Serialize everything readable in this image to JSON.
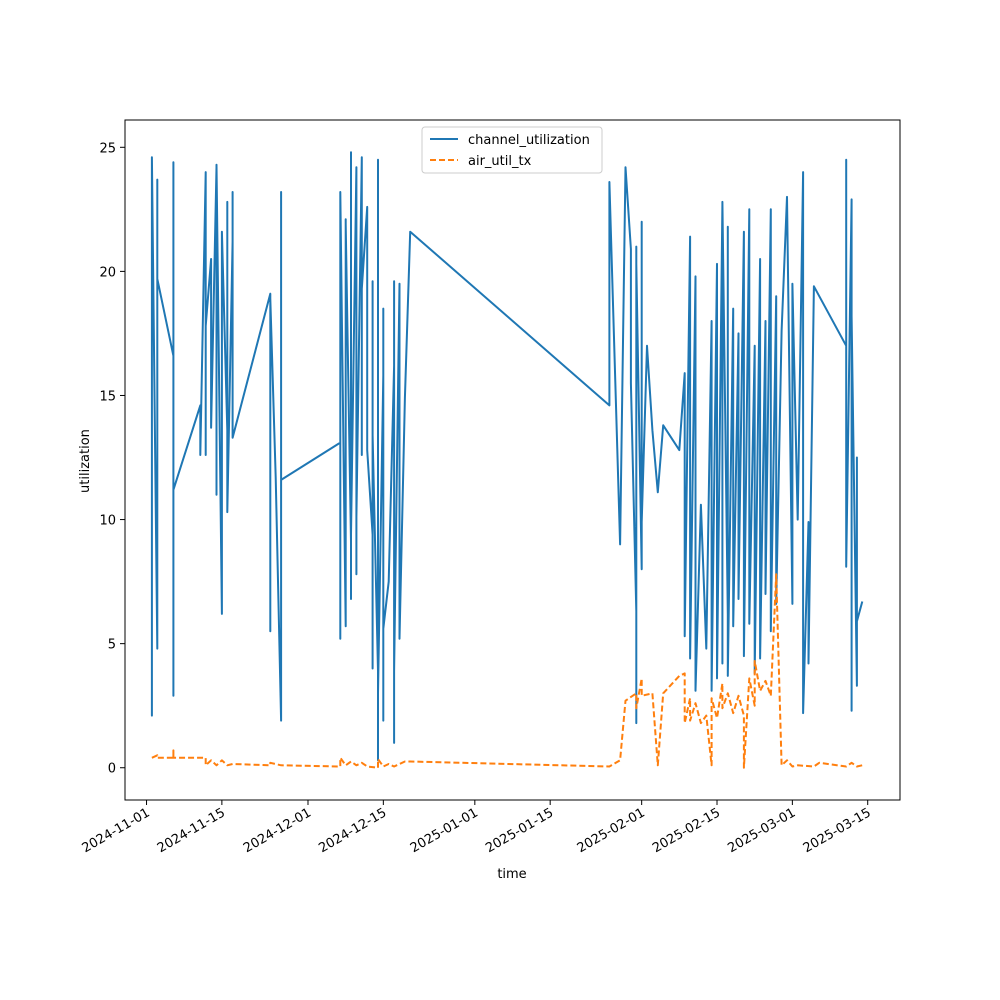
{
  "chart_data": {
    "type": "line",
    "title": "",
    "xlabel": "time",
    "ylabel": "utilization",
    "x_axis": {
      "type": "date",
      "range": [
        "2024-10-28",
        "2025-03-21"
      ],
      "ticks": [
        "2024-11-01",
        "2024-11-15",
        "2024-12-01",
        "2024-12-15",
        "2025-01-01",
        "2025-01-15",
        "2025-02-01",
        "2025-02-15",
        "2025-03-01",
        "2025-03-15"
      ]
    },
    "y_axis": {
      "range": [
        -1.3,
        26.1
      ],
      "ticks": [
        0,
        5,
        10,
        15,
        20,
        25
      ]
    },
    "grid": false,
    "legend_position": "top-center",
    "series": [
      {
        "name": "channel_utilization",
        "color": "#1f77b4",
        "style": "solid",
        "points": [
          [
            "2024-11-02",
            21.7
          ],
          [
            "2024-11-02",
            5.2
          ],
          [
            "2024-11-02",
            21.8
          ],
          [
            "2024-11-02",
            2.1
          ],
          [
            "2024-11-02",
            24.6
          ],
          [
            "2024-11-03",
            4.8
          ],
          [
            "2024-11-03",
            23.7
          ],
          [
            "2024-11-03",
            13.2
          ],
          [
            "2024-11-03",
            23.1
          ],
          [
            "2024-11-03",
            19.7
          ],
          [
            "2024-11-06",
            16.6
          ],
          [
            "2024-11-06",
            2.9
          ],
          [
            "2024-11-06",
            24.4
          ],
          [
            "2024-11-06",
            11.2
          ],
          [
            "2024-11-11",
            14.6
          ],
          [
            "2024-11-11",
            12.6
          ],
          [
            "2024-11-12",
            24.0
          ],
          [
            "2024-11-12",
            12.6
          ],
          [
            "2024-11-12",
            17.8
          ],
          [
            "2024-11-13",
            20.5
          ],
          [
            "2024-11-13",
            13.7
          ],
          [
            "2024-11-14",
            24.2
          ],
          [
            "2024-11-14",
            11.0
          ],
          [
            "2024-11-14",
            24.3
          ],
          [
            "2024-11-15",
            6.2
          ],
          [
            "2024-11-15",
            19.4
          ],
          [
            "2024-11-15",
            8.2
          ],
          [
            "2024-11-15",
            21.6
          ],
          [
            "2024-11-16",
            13.6
          ],
          [
            "2024-11-16",
            22.8
          ],
          [
            "2024-11-16",
            10.3
          ],
          [
            "2024-11-17",
            21.2
          ],
          [
            "2024-11-17",
            13.3
          ],
          [
            "2024-11-17",
            23.2
          ],
          [
            "2024-11-17",
            13.3
          ],
          [
            "2024-11-24",
            19.1
          ],
          [
            "2024-11-24",
            5.5
          ],
          [
            "2024-11-24",
            18.9
          ],
          [
            "2024-11-25",
            11.7
          ],
          [
            "2024-11-26",
            1.9
          ],
          [
            "2024-11-26",
            23.2
          ],
          [
            "2024-11-26",
            11.1
          ],
          [
            "2024-11-26",
            13.2
          ],
          [
            "2024-11-26",
            11.6
          ],
          [
            "2024-12-07",
            13.1
          ],
          [
            "2024-12-07",
            19.7
          ],
          [
            "2024-12-07",
            5.2
          ],
          [
            "2024-12-07",
            23.2
          ],
          [
            "2024-12-08",
            5.7
          ],
          [
            "2024-12-08",
            22.1
          ],
          [
            "2024-12-08",
            12.4
          ],
          [
            "2024-12-08",
            21.9
          ],
          [
            "2024-12-09",
            9.1
          ],
          [
            "2024-12-09",
            24.8
          ],
          [
            "2024-12-09",
            6.8
          ],
          [
            "2024-12-09",
            22.3
          ],
          [
            "2024-12-09",
            9.4
          ],
          [
            "2024-12-10",
            24.2
          ],
          [
            "2024-12-10",
            7.8
          ],
          [
            "2024-12-10",
            23.4
          ],
          [
            "2024-12-10",
            10.1
          ],
          [
            "2024-12-11",
            24.6
          ],
          [
            "2024-12-11",
            12.6
          ],
          [
            "2024-12-11",
            22.9
          ],
          [
            "2024-12-11",
            19.3
          ],
          [
            "2024-12-12",
            22.6
          ],
          [
            "2024-12-12",
            12.8
          ],
          [
            "2024-12-13",
            9.4
          ],
          [
            "2024-12-13",
            19.6
          ],
          [
            "2024-12-13",
            4.0
          ],
          [
            "2024-12-13",
            6.8
          ],
          [
            "2024-12-13",
            13.4
          ],
          [
            "2024-12-14",
            3.9
          ],
          [
            "2024-12-14",
            9.2
          ],
          [
            "2024-12-14",
            0.3
          ],
          [
            "2024-12-14",
            24.5
          ],
          [
            "2024-12-14",
            3.0
          ],
          [
            "2024-12-15",
            15.8
          ],
          [
            "2024-12-15",
            1.9
          ],
          [
            "2024-12-15",
            18.5
          ],
          [
            "2024-12-15",
            2.8
          ],
          [
            "2024-12-15",
            16.5
          ],
          [
            "2024-12-15",
            5.6
          ],
          [
            "2024-12-16",
            7.5
          ],
          [
            "2024-12-17",
            16.2
          ],
          [
            "2024-12-17",
            1.0
          ],
          [
            "2024-12-17",
            19.6
          ],
          [
            "2024-12-17",
            3.9
          ],
          [
            "2024-12-18",
            19.5
          ],
          [
            "2024-12-18",
            5.2
          ],
          [
            "2024-12-19",
            14.9
          ],
          [
            "2024-12-20",
            21.6
          ],
          [
            "2025-01-26",
            14.6
          ],
          [
            "2025-01-26",
            23.6
          ],
          [
            "2025-01-28",
            9.0
          ],
          [
            "2025-01-29",
            24.2
          ],
          [
            "2025-01-30",
            20.9
          ],
          [
            "2025-01-30",
            15.5
          ],
          [
            "2025-01-31",
            6.3
          ],
          [
            "2025-01-31",
            21.0
          ],
          [
            "2025-01-31",
            1.8
          ],
          [
            "2025-01-31",
            20.3
          ],
          [
            "2025-02-01",
            8.0
          ],
          [
            "2025-02-01",
            22.0
          ],
          [
            "2025-02-01",
            9.9
          ],
          [
            "2025-02-02",
            17.0
          ],
          [
            "2025-02-03",
            13.6
          ],
          [
            "2025-02-04",
            11.1
          ],
          [
            "2025-02-05",
            13.8
          ],
          [
            "2025-02-08",
            12.8
          ],
          [
            "2025-02-09",
            15.9
          ],
          [
            "2025-02-09",
            7.5
          ],
          [
            "2025-02-09",
            15.5
          ],
          [
            "2025-02-09",
            5.3
          ],
          [
            "2025-02-10",
            21.4
          ],
          [
            "2025-02-10",
            4.4
          ],
          [
            "2025-02-11",
            19.8
          ],
          [
            "2025-02-11",
            3.1
          ],
          [
            "2025-02-12",
            10.6
          ],
          [
            "2025-02-13",
            4.8
          ],
          [
            "2025-02-14",
            18.0
          ],
          [
            "2025-02-14",
            3.1
          ],
          [
            "2025-02-15",
            20.3
          ],
          [
            "2025-02-15",
            3.6
          ],
          [
            "2025-02-16",
            22.7
          ],
          [
            "2025-02-16",
            4.2
          ],
          [
            "2025-02-16",
            22.8
          ],
          [
            "2025-02-17",
            6.2
          ],
          [
            "2025-02-17",
            21.8
          ],
          [
            "2025-02-17",
            3.7
          ],
          [
            "2025-02-18",
            18.5
          ],
          [
            "2025-02-18",
            5.7
          ],
          [
            "2025-02-19",
            17.5
          ],
          [
            "2025-02-19",
            6.8
          ],
          [
            "2025-02-20",
            21.6
          ],
          [
            "2025-02-20",
            4.5
          ],
          [
            "2025-02-21",
            22.5
          ],
          [
            "2025-02-21",
            5.8
          ],
          [
            "2025-02-22",
            17.0
          ],
          [
            "2025-02-22",
            3.8
          ],
          [
            "2025-02-23",
            20.5
          ],
          [
            "2025-02-23",
            4.4
          ],
          [
            "2025-02-24",
            18.0
          ],
          [
            "2025-02-24",
            7.0
          ],
          [
            "2025-02-25",
            22.5
          ],
          [
            "2025-02-25",
            5.5
          ],
          [
            "2025-02-26",
            19.0
          ],
          [
            "2025-02-26",
            6.6
          ],
          [
            "2025-02-27",
            17.6
          ],
          [
            "2025-02-28",
            23.0
          ],
          [
            "2025-03-01",
            6.6
          ],
          [
            "2025-03-01",
            19.5
          ],
          [
            "2025-03-02",
            10.0
          ],
          [
            "2025-03-03",
            24.0
          ],
          [
            "2025-03-03",
            2.2
          ],
          [
            "2025-03-04",
            9.9
          ],
          [
            "2025-03-04",
            4.2
          ],
          [
            "2025-03-05",
            19.4
          ],
          [
            "2025-03-11",
            17.0
          ],
          [
            "2025-03-11",
            24.5
          ],
          [
            "2025-03-11",
            8.1
          ],
          [
            "2025-03-12",
            22.9
          ],
          [
            "2025-03-12",
            2.3
          ],
          [
            "2025-03-12",
            18.2
          ],
          [
            "2025-03-13",
            3.3
          ],
          [
            "2025-03-13",
            12.5
          ],
          [
            "2025-03-13",
            5.9
          ],
          [
            "2025-03-14",
            6.7
          ]
        ]
      },
      {
        "name": "air_util_tx",
        "color": "#ff7f0e",
        "style": "dashed",
        "points": [
          [
            "2024-11-02",
            0.4
          ],
          [
            "2024-11-03",
            0.5
          ],
          [
            "2024-11-03",
            0.4
          ],
          [
            "2024-11-06",
            0.4
          ],
          [
            "2024-11-06",
            0.7
          ],
          [
            "2024-11-06",
            0.4
          ],
          [
            "2024-11-12",
            0.4
          ],
          [
            "2024-11-12",
            0.1
          ],
          [
            "2024-11-13",
            0.3
          ],
          [
            "2024-11-14",
            0.1
          ],
          [
            "2024-11-15",
            0.3
          ],
          [
            "2024-11-16",
            0.1
          ],
          [
            "2024-11-17",
            0.15
          ],
          [
            "2024-11-24",
            0.1
          ],
          [
            "2024-11-24",
            0.2
          ],
          [
            "2024-11-26",
            0.1
          ],
          [
            "2024-12-07",
            0.05
          ],
          [
            "2024-12-07",
            0.4
          ],
          [
            "2024-12-08",
            0.1
          ],
          [
            "2024-12-09",
            0.25
          ],
          [
            "2024-12-10",
            0.1
          ],
          [
            "2024-12-11",
            0.2
          ],
          [
            "2024-12-12",
            0.05
          ],
          [
            "2024-12-14",
            0.0
          ],
          [
            "2024-12-14",
            0.35
          ],
          [
            "2024-12-15",
            0.05
          ],
          [
            "2024-12-16",
            0.15
          ],
          [
            "2024-12-17",
            0.05
          ],
          [
            "2024-12-19",
            0.25
          ],
          [
            "2024-12-20",
            0.25
          ],
          [
            "2025-01-26",
            0.05
          ],
          [
            "2025-01-28",
            0.3
          ],
          [
            "2025-01-29",
            2.7
          ],
          [
            "2025-01-31",
            3.0
          ],
          [
            "2025-01-31",
            2.4
          ],
          [
            "2025-02-01",
            3.6
          ],
          [
            "2025-02-01",
            2.9
          ],
          [
            "2025-02-03",
            3.0
          ],
          [
            "2025-02-04",
            0.1
          ],
          [
            "2025-02-05",
            3.0
          ],
          [
            "2025-02-08",
            3.7
          ],
          [
            "2025-02-09",
            3.8
          ],
          [
            "2025-02-09",
            1.8
          ],
          [
            "2025-02-10",
            2.8
          ],
          [
            "2025-02-10",
            1.9
          ],
          [
            "2025-02-11",
            2.6
          ],
          [
            "2025-02-12",
            1.8
          ],
          [
            "2025-02-13",
            2.1
          ],
          [
            "2025-02-14",
            0.1
          ],
          [
            "2025-02-14",
            2.8
          ],
          [
            "2025-02-15",
            2.0
          ],
          [
            "2025-02-16",
            3.4
          ],
          [
            "2025-02-16",
            2.4
          ],
          [
            "2025-02-17",
            3.0
          ],
          [
            "2025-02-18",
            2.2
          ],
          [
            "2025-02-19",
            2.9
          ],
          [
            "2025-02-20",
            2.1
          ],
          [
            "2025-02-20",
            0.0
          ],
          [
            "2025-02-21",
            3.6
          ],
          [
            "2025-02-22",
            2.5
          ],
          [
            "2025-02-22",
            4.3
          ],
          [
            "2025-02-23",
            3.1
          ],
          [
            "2025-02-24",
            3.5
          ],
          [
            "2025-02-25",
            2.9
          ],
          [
            "2025-02-26",
            7.8
          ],
          [
            "2025-02-27",
            0.1
          ],
          [
            "2025-02-28",
            0.3
          ],
          [
            "2025-03-01",
            0.05
          ],
          [
            "2025-03-02",
            0.1
          ],
          [
            "2025-03-05",
            0.05
          ],
          [
            "2025-03-06",
            0.2
          ],
          [
            "2025-03-11",
            0.05
          ],
          [
            "2025-03-12",
            0.2
          ],
          [
            "2025-03-13",
            0.05
          ],
          [
            "2025-03-14",
            0.1
          ]
        ]
      }
    ]
  }
}
